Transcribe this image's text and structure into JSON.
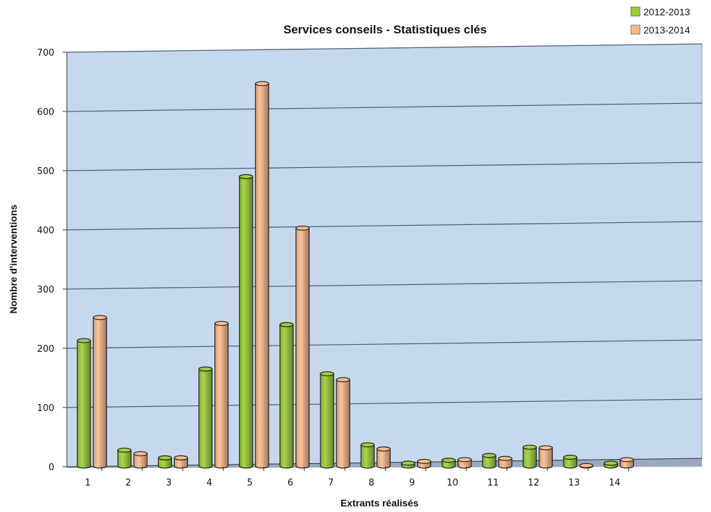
{
  "chart_data": {
    "type": "bar",
    "title": "Services conseils - Statistiques clés",
    "xlabel": "Extrants réalisés",
    "ylabel": "Nombre d'interventions",
    "ylim": [
      0,
      700
    ],
    "yticks": [
      "0",
      "100",
      "200",
      "300",
      "400",
      "500",
      "600",
      "700"
    ],
    "grid": true,
    "legend_position": "top-right",
    "categories": [
      "1",
      "2",
      "3",
      "4",
      "5",
      "6",
      "7",
      "8",
      "9",
      "10",
      "11",
      "12",
      "13",
      "14"
    ],
    "series": [
      {
        "name": "2012-2013",
        "color": "#9acd32",
        "values": [
          213,
          28,
          15,
          165,
          490,
          240,
          157,
          37,
          6,
          11,
          19,
          33,
          16,
          6
        ]
      },
      {
        "name": "2013-2014",
        "color": "#fbb98a",
        "values": [
          252,
          22,
          15,
          242,
          647,
          403,
          147,
          30,
          9,
          12,
          14,
          32,
          2,
          12
        ]
      }
    ],
    "colors": {
      "plot_back": "#c6d8ee",
      "grid": "#4a5d78"
    }
  }
}
